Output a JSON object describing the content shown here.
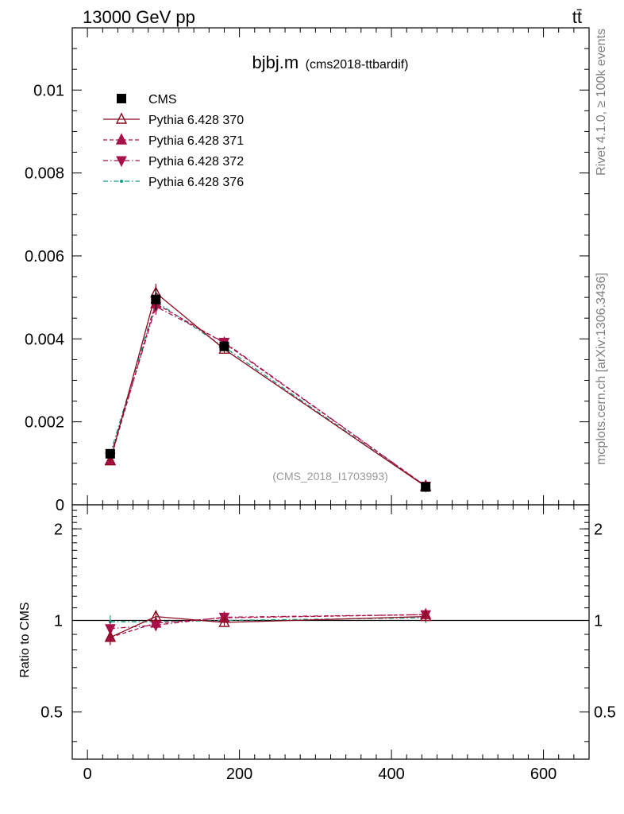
{
  "header": {
    "energy_label": "13000 GeV pp",
    "process_label": "tt̄"
  },
  "side_labels": {
    "rivet": "Rivet 4.1.0, ≥ 100k events",
    "mcplots": "mcplots.cern.ch [arXiv:1306.3436]"
  },
  "chart_data": [
    {
      "type": "scatter",
      "panel": "main",
      "title": "bjbj.m",
      "subtitle": "(cms2018-ttbardif)",
      "watermark": "(CMS_2018_I1703993)",
      "xlabel": "",
      "ylabel": "",
      "xlim": [
        -20,
        660
      ],
      "ylim": [
        0,
        0.0115
      ],
      "x": [
        30,
        90,
        180,
        445
      ],
      "yticks": [
        0,
        0.002,
        0.004,
        0.006,
        0.008,
        0.01
      ],
      "ytick_labels": [
        "0",
        "0.002",
        "0.004",
        "0.006",
        "0.008",
        "0.01"
      ],
      "legend_position": "top-left",
      "series": [
        {
          "name": "CMS",
          "color": "#000000",
          "marker": "square",
          "line": "none",
          "values": [
            0.00123,
            0.00495,
            0.00382,
            0.00043
          ],
          "errors": [
            8e-05,
            0.00025,
            0.00012,
            2e-05
          ]
        },
        {
          "name": "Pythia 6.428 370",
          "color": "#8b0a1e",
          "marker": "triangle-up-open",
          "line": "solid",
          "values": [
            0.00106,
            0.00511,
            0.00375,
            0.00044
          ],
          "errors": [
            5e-05,
            0.00022,
            0.0001,
            2e-05
          ]
        },
        {
          "name": "Pythia 6.428 371",
          "color": "#a8104a",
          "marker": "triangle-up",
          "line": "dashed",
          "values": [
            0.00107,
            0.00485,
            0.0039,
            0.00045
          ],
          "errors": [
            5e-05,
            0.0002,
            0.0001,
            2e-05
          ]
        },
        {
          "name": "Pythia 6.428 372",
          "color": "#a8104a",
          "marker": "triangle-down",
          "line": "dashdot",
          "values": [
            0.00115,
            0.00478,
            0.00392,
            0.00045
          ],
          "errors": [
            5e-05,
            0.0002,
            0.0001,
            2e-05
          ]
        },
        {
          "name": "Pythia 6.428 376",
          "color": "#159b80",
          "marker": "dot",
          "line": "dashdot",
          "values": [
            0.00122,
            0.0049,
            0.0038,
            0.00044
          ],
          "errors": [
            5e-05,
            0.0002,
            0.0001,
            2e-05
          ]
        }
      ]
    },
    {
      "type": "scatter",
      "panel": "ratio",
      "ylabel": "Ratio to CMS",
      "xlim": [
        -20,
        660
      ],
      "ylim": [
        0.35,
        2.4
      ],
      "yscale": "log",
      "x": [
        30,
        90,
        180,
        445
      ],
      "xticks": [
        0,
        200,
        400,
        600
      ],
      "xtick_labels": [
        "0",
        "200",
        "400",
        "600"
      ],
      "yticks": [
        0.5,
        1,
        2
      ],
      "ytick_labels": [
        "0.5",
        "1",
        "2"
      ],
      "series": [
        {
          "name": "CMS",
          "color": "#000000",
          "values": [
            1,
            1,
            1,
            1
          ]
        },
        {
          "name": "Pythia 6.428 370",
          "color": "#8b0a1e",
          "line": "solid",
          "marker": "triangle-up-open",
          "values": [
            0.88,
            1.03,
            0.985,
            1.03
          ],
          "errors": [
            0.05,
            0.04,
            0.03,
            0.04
          ]
        },
        {
          "name": "Pythia 6.428 371",
          "color": "#a8104a",
          "line": "dashed",
          "marker": "triangle-up",
          "values": [
            0.88,
            0.98,
            1.02,
            1.045
          ],
          "errors": [
            0.05,
            0.04,
            0.03,
            0.04
          ]
        },
        {
          "name": "Pythia 6.428 372",
          "color": "#a8104a",
          "line": "dashdot",
          "marker": "triangle-down",
          "values": [
            0.94,
            0.965,
            1.025,
            1.045
          ],
          "errors": [
            0.05,
            0.04,
            0.03,
            0.04
          ]
        },
        {
          "name": "Pythia 6.428 376",
          "color": "#159b80",
          "line": "dashdot",
          "marker": "dot",
          "values": [
            0.99,
            0.99,
            1.0,
            1.02
          ],
          "errors": [
            0.05,
            0.04,
            0.03,
            0.04
          ]
        }
      ]
    }
  ]
}
